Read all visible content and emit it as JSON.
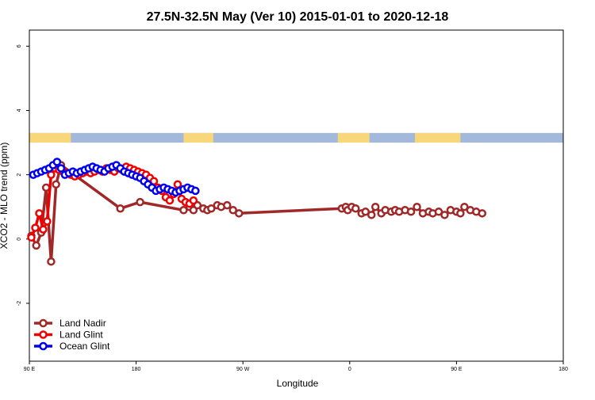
{
  "chart_data": {
    "type": "line",
    "title": "27.5N-32.5N May (Ver 10)   2015-01-01 to 2020-12-18",
    "xlabel": "Longitude",
    "ylabel": "XCO2 - MLO trend (ppm)",
    "xlim": [
      -90,
      180
    ],
    "ylim": [
      -3.8,
      6.5
    ],
    "x_ticks": [
      {
        "value": -90,
        "label": "90 E"
      },
      {
        "value": -36,
        "label": "180"
      },
      {
        "value": 18,
        "label": "90 W"
      },
      {
        "value": 72,
        "label": "0"
      },
      {
        "value": 126,
        "label": "90 E"
      },
      {
        "value": 180,
        "label": "180"
      }
    ],
    "y_ticks": [
      {
        "value": -2,
        "label": "-2"
      },
      {
        "value": 0,
        "label": "0"
      },
      {
        "value": 2,
        "label": "2"
      },
      {
        "value": 4,
        "label": "4"
      },
      {
        "value": 6,
        "label": "6"
      }
    ],
    "grid": false,
    "legend_position": "bottom-left",
    "land_ocean_band": {
      "y_range": [
        3.0,
        3.3
      ],
      "ocean_color": "#a3b9dc",
      "land_color": "#f7d77a",
      "land_segments": [
        [
          -90,
          -69
        ],
        [
          -12,
          3
        ],
        [
          66,
          82
        ],
        [
          105,
          128
        ]
      ]
    },
    "series": [
      {
        "name": "Land Nadir",
        "color": "#a02828",
        "x": [
          -89,
          -86.5,
          -84,
          -81.5,
          -79,
          -76.5,
          -74,
          -44,
          -34,
          -12,
          -9,
          -7,
          -5,
          -2,
          0,
          2,
          5,
          7,
          10,
          13,
          16,
          68,
          70,
          71,
          73,
          75,
          78,
          80,
          83,
          85,
          88,
          90,
          93,
          95,
          97,
          100,
          103,
          106,
          109,
          112,
          114,
          117,
          120,
          123,
          126,
          128,
          130,
          133,
          136,
          139
        ],
        "y": [
          0.1,
          -0.2,
          0.2,
          1.6,
          -0.7,
          1.7,
          2.3,
          0.95,
          1.15,
          0.9,
          1.0,
          0.9,
          1.05,
          0.95,
          0.9,
          0.95,
          1.05,
          1.0,
          1.05,
          0.9,
          0.8,
          0.95,
          1.0,
          0.9,
          1.0,
          0.95,
          0.8,
          0.85,
          0.75,
          1.0,
          0.8,
          0.9,
          0.85,
          0.9,
          0.85,
          0.9,
          0.85,
          1.0,
          0.8,
          0.85,
          0.8,
          0.85,
          0.75,
          0.9,
          0.85,
          0.8,
          1.0,
          0.9,
          0.85,
          0.8
        ]
      },
      {
        "name": "Land Glint",
        "color": "#ee0000",
        "x": [
          -89,
          -87,
          -85,
          -83,
          -81,
          -79,
          -77,
          -75,
          -73,
          -71,
          -69,
          -67,
          -65,
          -63,
          -61,
          -59,
          -57,
          -55,
          -53,
          -51,
          -49,
          -47,
          -45,
          -43,
          -41,
          -39,
          -37,
          -35,
          -33,
          -31,
          -29,
          -27,
          -25,
          -23,
          -21,
          -19,
          -17,
          -15,
          -13,
          -11,
          -9,
          -7
        ],
        "y": [
          0.05,
          0.35,
          0.8,
          0.3,
          0.55,
          2.0,
          2.2,
          2.15,
          2.1,
          2.05,
          2.0,
          1.95,
          2.0,
          2.05,
          2.1,
          2.05,
          2.1,
          2.15,
          2.1,
          2.2,
          2.15,
          2.1,
          2.2,
          2.15,
          2.25,
          2.2,
          2.15,
          2.1,
          2.05,
          2.0,
          1.9,
          1.8,
          1.6,
          1.5,
          1.3,
          1.2,
          1.4,
          1.7,
          1.25,
          1.15,
          1.1,
          1.2
        ]
      },
      {
        "name": "Ocean Glint",
        "color": "#0000ee",
        "x": [
          -88,
          -86,
          -84,
          -82,
          -80,
          -78,
          -76,
          -74,
          -72,
          -70,
          -68,
          -66,
          -64,
          -62,
          -60,
          -58,
          -56,
          -54,
          -52,
          -50,
          -48,
          -46,
          -44,
          -42,
          -40,
          -38,
          -36,
          -34,
          -32,
          -30,
          -28,
          -26,
          -24,
          -22,
          -20,
          -18,
          -16,
          -14,
          -12,
          -10,
          -8,
          -6
        ],
        "y": [
          2.0,
          2.05,
          2.1,
          2.15,
          2.2,
          2.3,
          2.4,
          2.2,
          2.0,
          2.05,
          2.1,
          2.05,
          2.1,
          2.15,
          2.2,
          2.25,
          2.2,
          2.15,
          2.1,
          2.2,
          2.25,
          2.3,
          2.2,
          2.1,
          2.05,
          2.0,
          1.95,
          1.9,
          1.8,
          1.7,
          1.6,
          1.5,
          1.55,
          1.6,
          1.55,
          1.5,
          1.45,
          1.5,
          1.55,
          1.6,
          1.55,
          1.5
        ]
      }
    ]
  }
}
